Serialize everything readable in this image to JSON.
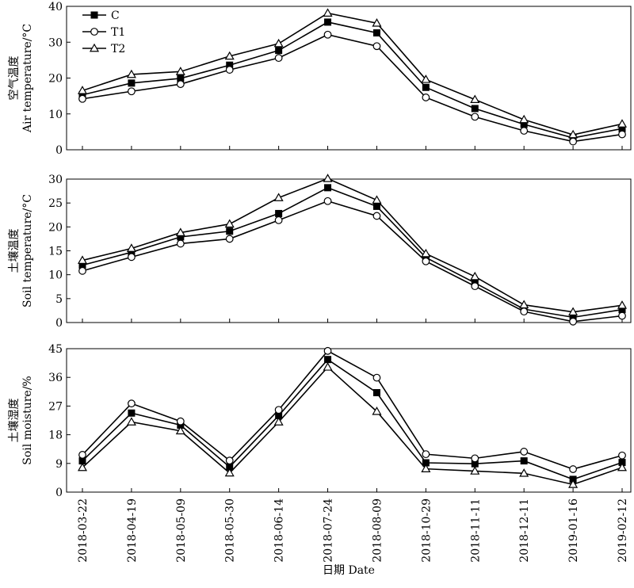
{
  "chart_data": {
    "type": "line",
    "xlabel": "日期 Date",
    "categories": [
      "2018-03-22",
      "2018-04-19",
      "2018-05-09",
      "2018-05-30",
      "2018-06-14",
      "2018-07-24",
      "2018-08-09",
      "2018-10-29",
      "2018-11-11",
      "2018-12-11",
      "2019-01-16",
      "2019-02-12"
    ],
    "legend": {
      "placement": "top-left",
      "entries": [
        "C",
        "T1",
        "T2"
      ]
    },
    "grid": false,
    "panels": [
      {
        "ylabel_cn": "空气温度",
        "ylabel_en": "Air temperature/°C",
        "ylim": [
          0,
          40
        ],
        "yticks": [
          0,
          10,
          20,
          30,
          40
        ],
        "series": [
          {
            "name": "C",
            "marker": "square",
            "values": [
              15.3,
              18.6,
              19.9,
              23.6,
              27.7,
              35.6,
              32.6,
              17.4,
              11.5,
              7.1,
              3.3,
              5.9
            ]
          },
          {
            "name": "T1",
            "marker": "circle",
            "values": [
              14.2,
              16.3,
              18.3,
              22.3,
              25.6,
              32.1,
              28.9,
              14.6,
              9.2,
              5.3,
              2.3,
              4.3
            ]
          },
          {
            "name": "T2",
            "marker": "triangle",
            "values": [
              16.5,
              21.0,
              21.8,
              26.1,
              29.6,
              38.1,
              35.3,
              19.6,
              14.0,
              8.4,
              4.2,
              7.2
            ]
          }
        ]
      },
      {
        "ylabel_cn": "土壤温度",
        "ylabel_en": "Soil temperature/°C",
        "ylim": [
          0,
          30
        ],
        "yticks": [
          0,
          5,
          10,
          15,
          20,
          25,
          30
        ],
        "series": [
          {
            "name": "C",
            "marker": "square",
            "values": [
              12.0,
              14.7,
              17.9,
              19.1,
              22.8,
              28.2,
              24.3,
              13.6,
              8.3,
              2.8,
              1.1,
              2.7
            ]
          },
          {
            "name": "T1",
            "marker": "circle",
            "values": [
              10.8,
              13.7,
              16.5,
              17.5,
              21.4,
              25.4,
              22.3,
              12.8,
              7.6,
              2.3,
              0.2,
              1.4
            ]
          },
          {
            "name": "T2",
            "marker": "triangle",
            "values": [
              13.0,
              15.5,
              18.8,
              20.6,
              26.1,
              30.1,
              25.6,
              14.4,
              9.6,
              3.7,
              2.2,
              3.6
            ]
          }
        ]
      },
      {
        "ylabel_cn": "土壤湿度",
        "ylabel_en": "Soil moisture/%",
        "ylim": [
          0,
          45
        ],
        "yticks": [
          0,
          9,
          18,
          27,
          36,
          45
        ],
        "series": [
          {
            "name": "C",
            "marker": "square",
            "values": [
              9.8,
              24.8,
              21.0,
              7.9,
              24.0,
              41.6,
              31.2,
              9.2,
              8.9,
              9.8,
              4.0,
              9.3
            ]
          },
          {
            "name": "T1",
            "marker": "circle",
            "values": [
              11.7,
              27.8,
              22.2,
              9.9,
              25.8,
              44.3,
              35.9,
              11.9,
              10.6,
              12.7,
              7.2,
              11.5
            ]
          },
          {
            "name": "T2",
            "marker": "triangle",
            "values": [
              7.7,
              22.0,
              19.2,
              6.0,
              22.0,
              39.2,
              25.3,
              7.3,
              6.6,
              5.9,
              2.4,
              7.7
            ]
          }
        ]
      }
    ]
  }
}
